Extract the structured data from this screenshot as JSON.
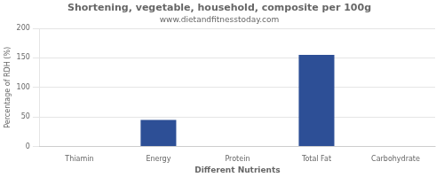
{
  "chart_data": {
    "type": "bar",
    "title": "Shortening, vegetable, household, composite per 100g",
    "subtitle": "www.dietandfitnesstoday.com",
    "xlabel": "Different Nutrients",
    "ylabel": "Percentage of RDH (%)",
    "categories": [
      "Thiamin",
      "Energy",
      "Protein",
      "Total Fat",
      "Carbohydrate"
    ],
    "values": [
      0,
      45,
      0,
      155,
      0
    ],
    "color": "#2d4f96",
    "ylim": [
      0,
      200
    ],
    "yticks": [
      0,
      50,
      100,
      150,
      200
    ],
    "grid": true
  }
}
